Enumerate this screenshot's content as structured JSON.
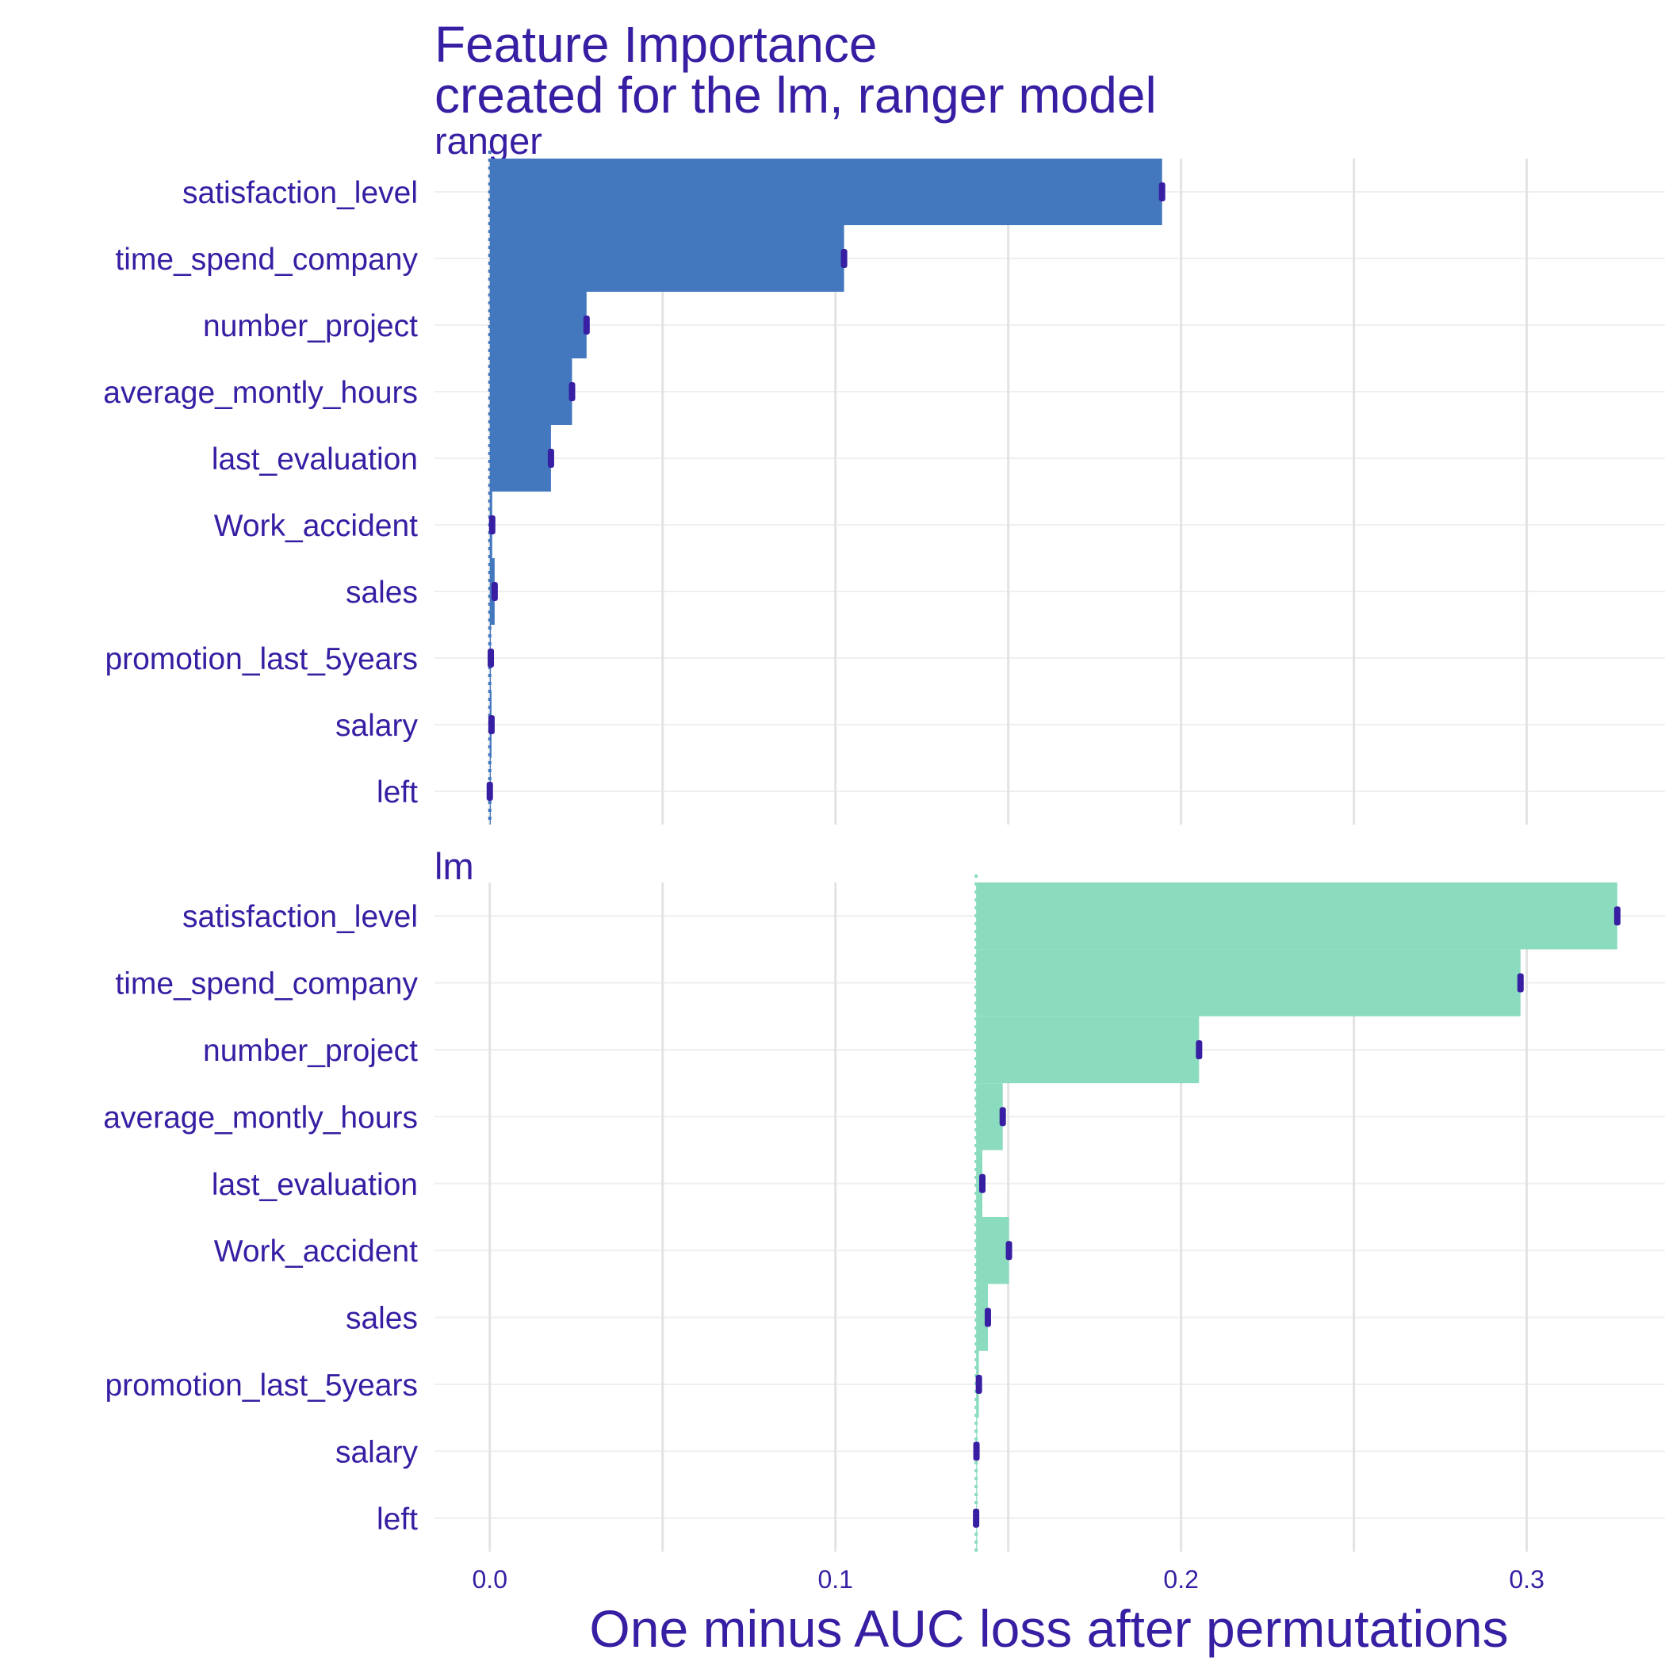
{
  "chart_data": {
    "type": "bar",
    "title_lines": [
      "Feature Importance",
      "created for the lm, ranger model"
    ],
    "xlabel": "One minus AUC loss after permutations",
    "xlim": [
      -0.016,
      0.34
    ],
    "x_ticks": [
      0.0,
      0.1,
      0.2,
      0.3
    ],
    "x_tick_labels": [
      "0.0",
      "0.1",
      "0.2",
      "0.3"
    ],
    "grid": true,
    "panels": [
      {
        "name": "ranger",
        "color": "#4378bf",
        "baseline": 0.0,
        "categories": [
          "satisfaction_level",
          "time_spend_company",
          "number_project",
          "average_montly_hours",
          "last_evaluation",
          "Work_accident",
          "sales",
          "promotion_last_5years",
          "salary",
          "left"
        ],
        "values": [
          0.1945,
          0.1025,
          0.028,
          0.0238,
          0.0177,
          0.0007,
          0.0014,
          0.0003,
          0.0005,
          0.0
        ]
      },
      {
        "name": "lm",
        "color": "#8bdcbe",
        "baseline": 0.1407,
        "categories": [
          "satisfaction_level",
          "time_spend_company",
          "number_project",
          "average_montly_hours",
          "last_evaluation",
          "Work_accident",
          "sales",
          "promotion_last_5years",
          "salary",
          "left"
        ],
        "values": [
          0.3262,
          0.2982,
          0.2052,
          0.1484,
          0.1425,
          0.1502,
          0.1441,
          0.1415,
          0.1408,
          0.1407
        ]
      }
    ],
    "colors": {
      "text": "#371ea3",
      "grid": "#e3e3e3",
      "marker": "#371ea3"
    }
  }
}
